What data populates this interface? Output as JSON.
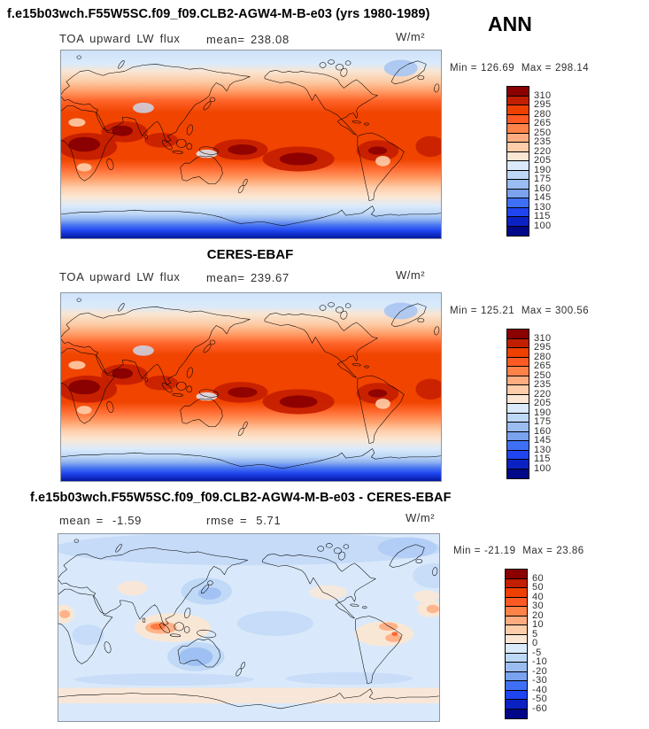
{
  "page": {
    "title": "f.e15b03wch.F55W5SC.f09_f09.CLB2-AGW4-M-B-e03 (yrs 1980-1989)",
    "season": "ANN"
  },
  "panels": {
    "model": {
      "variable": "TOA upward LW flux",
      "mean_label": "mean=",
      "mean": "238.08",
      "units": "W/m²",
      "min_label": "Min =",
      "min": "126.69",
      "max_label": "Max =",
      "max": "298.14"
    },
    "obs": {
      "title": "CERES-EBAF",
      "variable": "TOA upward LW flux",
      "mean_label": "mean=",
      "mean": "239.67",
      "units": "W/m²",
      "min_label": "Min =",
      "min": "125.21",
      "max_label": "Max =",
      "max": "300.56"
    },
    "diff": {
      "title": "f.e15b03wch.F55W5SC.f09_f09.CLB2-AGW4-M-B-e03 - CERES-EBAF",
      "mean_label": "mean =",
      "mean": "-1.59",
      "rmse_label": "rmse =",
      "rmse": "5.71",
      "units": "W/m²",
      "min_label": "Min =",
      "min": "-21.19",
      "max_label": "Max =",
      "max": "23.86"
    }
  },
  "colorbars": {
    "palette_top_to_bottom": [
      "#8B0000",
      "#C21E00",
      "#EE4000",
      "#FF5A24",
      "#FF8248",
      "#FFAC80",
      "#FFCDA9",
      "#FBE7D4",
      "#DAEAFB",
      "#BDD7F6",
      "#9ABCF1",
      "#7AA2EE",
      "#3F6FF5",
      "#1F44F0",
      "#0A22C4",
      "#000888"
    ],
    "flux_ticks": [
      "310",
      "295",
      "280",
      "265",
      "250",
      "235",
      "220",
      "205",
      "190",
      "175",
      "160",
      "145",
      "130",
      "115",
      "100"
    ],
    "diff_ticks": [
      "60",
      "50",
      "40",
      "30",
      "20",
      "10",
      "5",
      "0",
      "-5",
      "-10",
      "-20",
      "-30",
      "-40",
      "-50",
      "-60"
    ]
  },
  "chart_data": [
    {
      "type": "heatmap",
      "subtype": "global filled-contour map, equirectangular, lon 0-360E, lat 90N-90S",
      "title": "f.e15b03wch.F55W5SC.f09_f09.CLB2-AGW4-M-B-e03 (yrs 1980-1989)",
      "season": "ANN",
      "variable": "TOA upward LW flux",
      "units": "W/m²",
      "mean": 238.08,
      "min": 126.69,
      "max": 298.14,
      "contour_levels": [
        100,
        115,
        130,
        145,
        160,
        175,
        190,
        205,
        220,
        235,
        250,
        265,
        280,
        295,
        310
      ],
      "legend_position": "right",
      "pattern": "high OLR 250-295 band across tropics/subtropics with maxima over N Africa, Arabian Sea, W and central S Pacific, N South America and subtropical Atlantic; 205-235 mid-latitudes; pale blue 190-205 over Arctic; lowest values 100-160 (dark blue) over Antarctica; pale blue patch over Maritime Continent and Greenland"
    },
    {
      "type": "heatmap",
      "subtype": "global filled-contour map, equirectangular, lon 0-360E, lat 90N-90S",
      "title": "CERES-EBAF",
      "season": "ANN",
      "variable": "TOA upward LW flux",
      "units": "W/m²",
      "mean": 239.67,
      "min": 125.21,
      "max": 300.56,
      "contour_levels": [
        100,
        115,
        130,
        145,
        160,
        175,
        190,
        205,
        220,
        235,
        250,
        265,
        280,
        295,
        310
      ],
      "legend_position": "right",
      "pattern": "observed field, nearly identical spatial structure to model panel"
    },
    {
      "type": "heatmap",
      "subtype": "global filled-contour difference map (model minus CERES-EBAF)",
      "title": "f.e15b03wch.F55W5SC.f09_f09.CLB2-AGW4-M-B-e03 - CERES-EBAF",
      "season": "ANN",
      "variable": "TOA upward LW flux difference",
      "units": "W/m²",
      "mean": -1.59,
      "rmse": 5.71,
      "min": -21.19,
      "max": 23.86,
      "contour_levels": [
        -60,
        -50,
        -40,
        -30,
        -20,
        -10,
        -5,
        0,
        5,
        10,
        20,
        30,
        40,
        50,
        60
      ],
      "legend_position": "right",
      "pattern": "mostly weak negative differences (pale blue, 0 to -10) globally; stronger negatives over NE Asia, Australia and central Pacific; positive patches (5-20, orange) over E Indian Ocean / Maritime Continent, tropical S America and Atlantic, and along the Antarctic coastline"
    }
  ]
}
